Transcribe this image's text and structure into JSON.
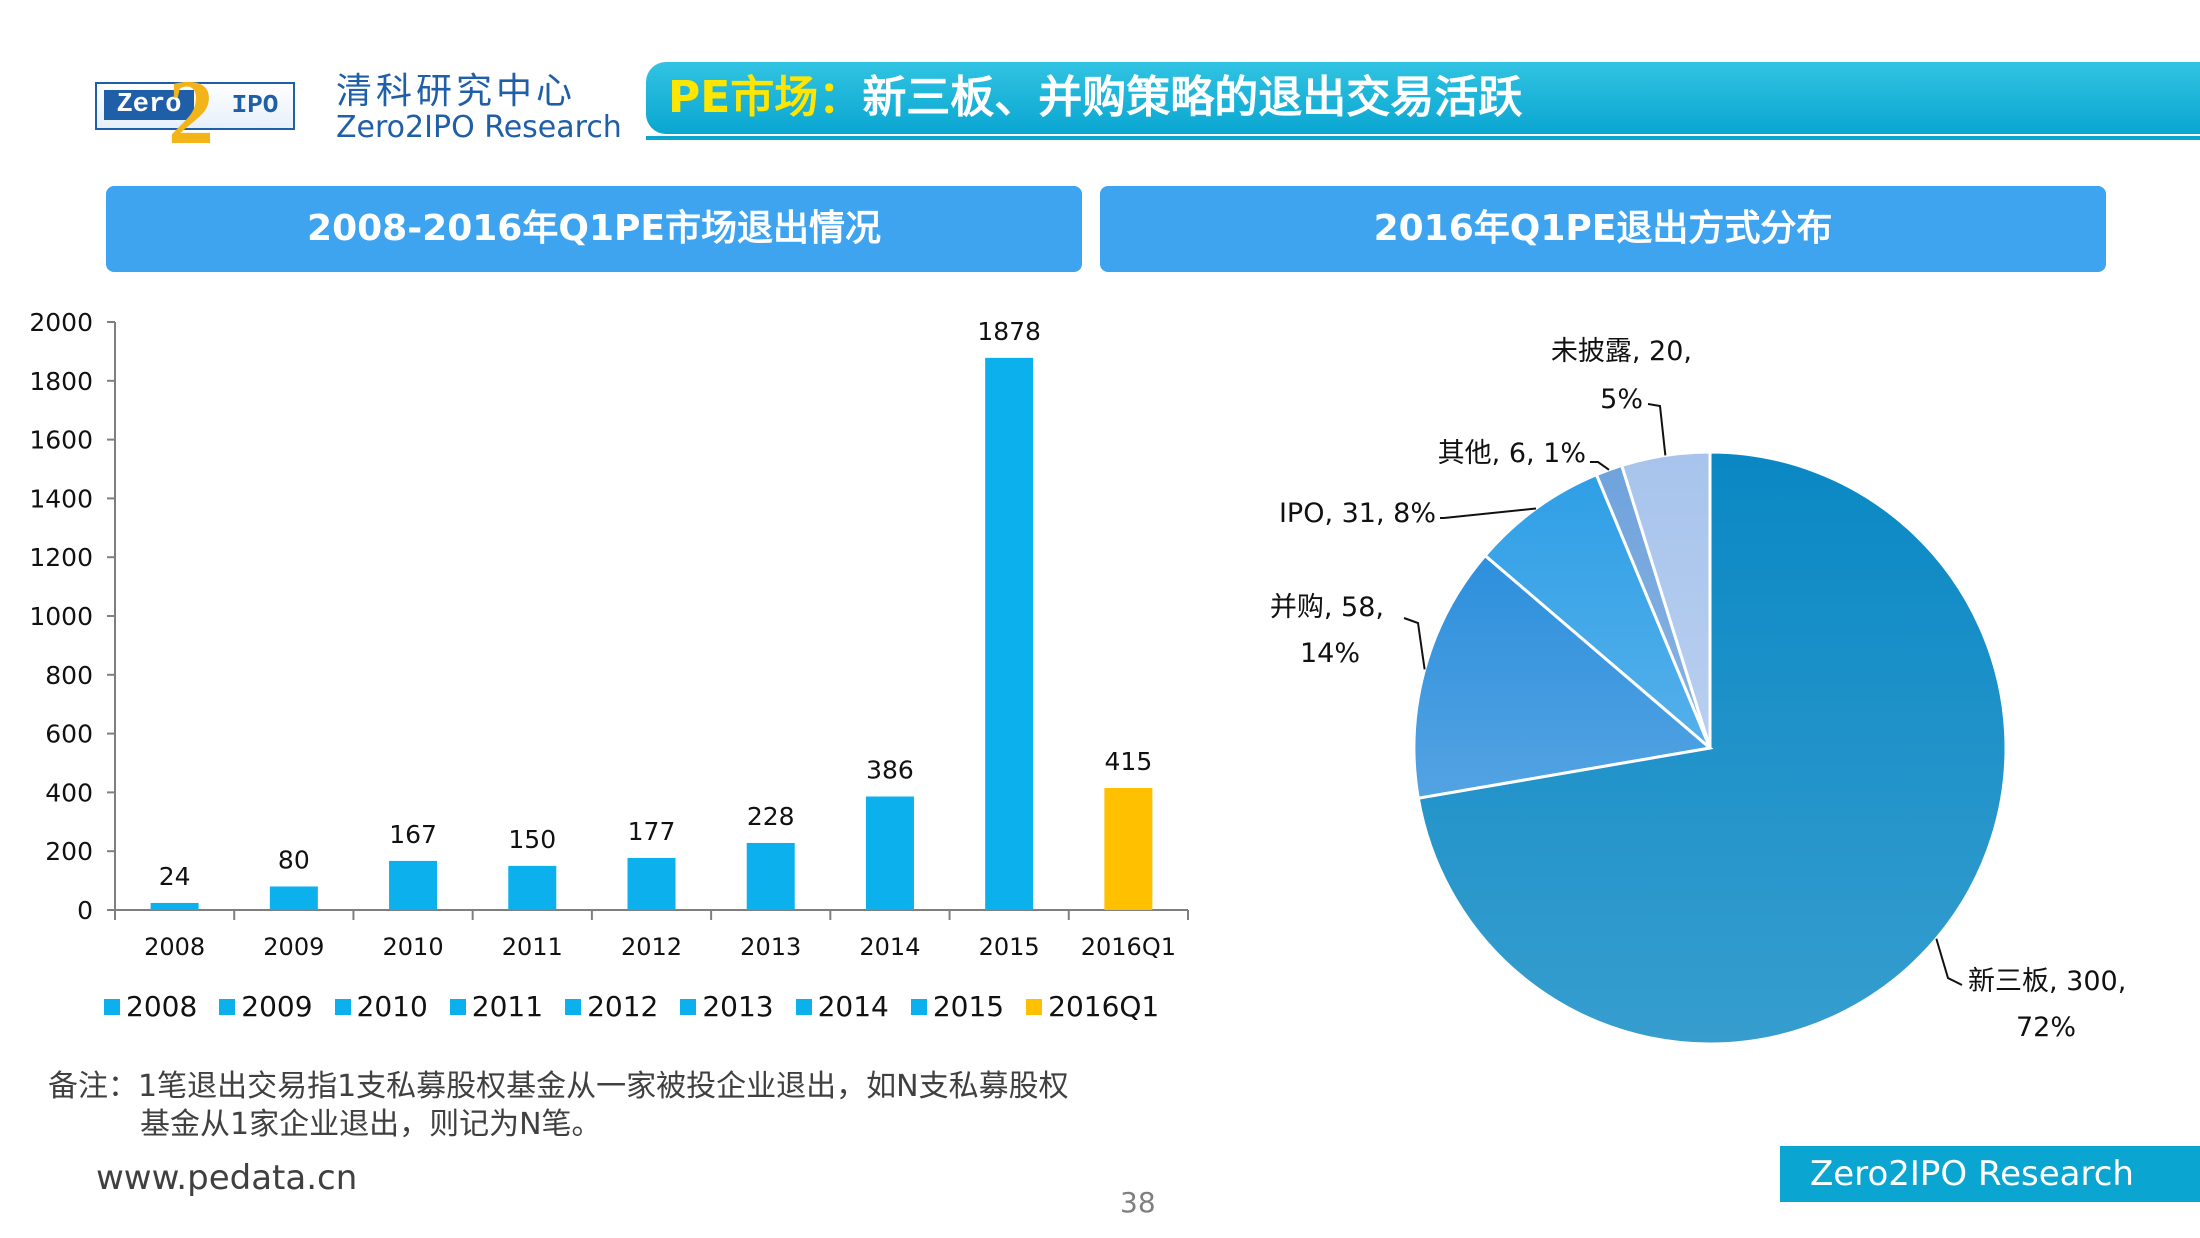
{
  "header": {
    "logo": {
      "zero": "Zero",
      "two": "2",
      "ipo": "IPO"
    },
    "org_cn": "清科研究中心",
    "org_en": "Zero2IPO Research",
    "title_accent": "PE市场：",
    "title_main": "新三板、并购策略的退出交易活跃"
  },
  "sections": {
    "left_title": "2008-2016年Q1PE市场退出情况",
    "right_title": "2016年Q1PE退出方式分布"
  },
  "colors": {
    "bar": "#0bb0ec",
    "highlight": "#ffc000",
    "title_accent": "#ffe600"
  },
  "chart_data": [
    {
      "type": "bar",
      "title": "2008-2016年Q1PE市场退出情况",
      "categories": [
        "2008",
        "2009",
        "2010",
        "2011",
        "2012",
        "2013",
        "2014",
        "2015",
        "2016Q1"
      ],
      "values": [
        24,
        80,
        167,
        150,
        177,
        228,
        386,
        1878,
        415
      ],
      "colors": [
        "#0bb0ec",
        "#0bb0ec",
        "#0bb0ec",
        "#0bb0ec",
        "#0bb0ec",
        "#0bb0ec",
        "#0bb0ec",
        "#0bb0ec",
        "#ffc000"
      ],
      "ylim": [
        0,
        2000
      ],
      "yticks": [
        0,
        200,
        400,
        600,
        800,
        1000,
        1200,
        1400,
        1600,
        1800,
        2000
      ],
      "legend": [
        "2008",
        "2009",
        "2010",
        "2011",
        "2012",
        "2013",
        "2014",
        "2015",
        "2016Q1"
      ],
      "legend_position": "bottom",
      "xlabel": "",
      "ylabel": ""
    },
    {
      "type": "pie",
      "title": "2016年Q1PE退出方式分布",
      "slices": [
        {
          "label": "新三板",
          "value": 300,
          "percent": "72%",
          "text1": "新三板, 300,",
          "text2": "72%",
          "color": "#0a88c4"
        },
        {
          "label": "并购",
          "value": 58,
          "percent": "14%",
          "text1": "并购, 58,",
          "text2": "14%",
          "color": "#2d8fdc"
        },
        {
          "label": "IPO",
          "value": 31,
          "percent": "8%",
          "text1": "IPO, 31, 8%",
          "text2": "",
          "color": "#2f9fe6"
        },
        {
          "label": "其他",
          "value": 6,
          "percent": "1%",
          "text1": "其他, 6, 1%",
          "text2": "",
          "color": "#6fa3dc"
        },
        {
          "label": "未披露",
          "value": 20,
          "percent": "5%",
          "text1": "未披露, 20,",
          "text2": "5%",
          "color": "#a8c4ec"
        }
      ]
    }
  ],
  "note": {
    "line1": "备注：1笔退出交易指1支私募股权基金从一家被投企业退出，如N支私募股权",
    "line2": "基金从1家企业退出，则记为N笔。"
  },
  "footer": {
    "url": "www.pedata.cn",
    "page": "38",
    "brand": "Zero2IPO Research"
  }
}
